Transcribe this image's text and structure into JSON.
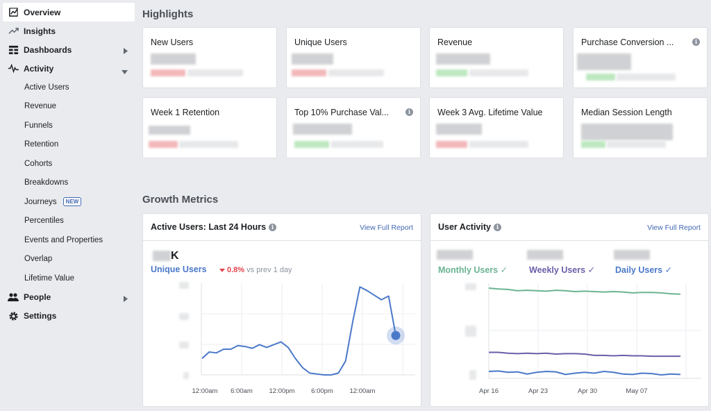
{
  "sidebar": {
    "items": [
      {
        "label": "Overview",
        "icon": "chart-line-box-icon",
        "active": true
      },
      {
        "label": "Insights",
        "icon": "trend-up-icon"
      },
      {
        "label": "Dashboards",
        "icon": "grid-icon",
        "has_arrow": true
      },
      {
        "label": "Activity",
        "icon": "pulse-icon",
        "expanded": true
      }
    ],
    "activity_sub": [
      {
        "label": "Active Users"
      },
      {
        "label": "Revenue"
      },
      {
        "label": "Funnels"
      },
      {
        "label": "Retention"
      },
      {
        "label": "Cohorts"
      },
      {
        "label": "Breakdowns"
      },
      {
        "label": "Journeys",
        "badge": "NEW"
      },
      {
        "label": "Percentiles"
      },
      {
        "label": "Events and Properties"
      },
      {
        "label": "Overlap"
      },
      {
        "label": "Lifetime Value"
      }
    ],
    "bottom_items": [
      {
        "label": "People",
        "icon": "people-icon",
        "has_arrow": true
      },
      {
        "label": "Settings",
        "icon": "gear-icon"
      }
    ]
  },
  "highlights": {
    "title": "Highlights",
    "cards": [
      {
        "label": "New Users",
        "trend": "red"
      },
      {
        "label": "Unique Users",
        "trend": "red"
      },
      {
        "label": "Revenue",
        "trend": "green"
      },
      {
        "label": "Purchase Conversion ...",
        "trend": "green",
        "info": true
      },
      {
        "label": "Week 1 Retention",
        "trend": "red"
      },
      {
        "label": "Top 10% Purchase Val...",
        "trend": "green",
        "info": true
      },
      {
        "label": "Week 3 Avg. Lifetime Value",
        "trend": "red"
      },
      {
        "label": "Median Session Length",
        "trend": "green"
      }
    ]
  },
  "growth": {
    "title": "Growth Metrics",
    "active_users": {
      "title": "Active Users: Last 24 Hours",
      "link": "View Full Report",
      "big_value_suffix": "K",
      "series_label": "Unique Users",
      "delta_pct": "0.8%",
      "delta_text": "vs prev 1 day"
    },
    "user_activity": {
      "title": "User Activity",
      "link": "View Full Report",
      "series": [
        {
          "label": "Monthly Users",
          "color": "#6bb392"
        },
        {
          "label": "Weekly Users",
          "color": "#6b5ea8"
        },
        {
          "label": "Daily Users",
          "color": "#4a78c9"
        }
      ]
    }
  },
  "chart_data": [
    {
      "type": "line",
      "title": "Active Users: Last 24 Hours",
      "x_tick_labels": [
        "12:00am",
        "6:00am",
        "12:00pm",
        "6:00pm",
        "12:00am"
      ],
      "series": [
        {
          "name": "Unique Users",
          "color": "#4a78c9",
          "values": [
            0.18,
            0.25,
            0.24,
            0.28,
            0.28,
            0.32,
            0.31,
            0.29,
            0.33,
            0.3,
            0.33,
            0.36,
            0.3,
            0.18,
            0.08,
            0.02,
            0.01,
            0.0,
            0.0,
            0.02,
            0.15,
            0.58,
            0.96,
            0.92,
            0.87,
            0.82,
            0.86,
            0.43
          ]
        }
      ],
      "ylim": [
        0,
        1
      ]
    },
    {
      "type": "line",
      "title": "User Activity",
      "x_tick_labels": [
        "Apr 16",
        "Apr 23",
        "Apr 30",
        "May 07"
      ],
      "series": [
        {
          "name": "Monthly Users",
          "color": "#6bb392",
          "values": [
            1.0,
            0.99,
            0.985,
            0.97,
            0.975,
            0.97,
            0.965,
            0.975,
            0.97,
            0.96,
            0.965,
            0.96,
            0.955,
            0.96,
            0.955,
            0.945,
            0.95,
            0.95,
            0.945,
            0.935,
            0.93
          ]
        },
        {
          "name": "Weekly Users",
          "color": "#6b5ea8",
          "values": [
            0.26,
            0.26,
            0.25,
            0.245,
            0.25,
            0.245,
            0.25,
            0.24,
            0.245,
            0.245,
            0.24,
            0.225,
            0.225,
            0.22,
            0.225,
            0.22,
            0.22,
            0.215,
            0.215,
            0.215,
            0.215
          ]
        },
        {
          "name": "Daily Users",
          "color": "#4a78c9",
          "values": [
            0.04,
            0.045,
            0.03,
            0.035,
            0.01,
            0.03,
            0.04,
            0.035,
            0.005,
            0.02,
            0.03,
            0.02,
            0.04,
            0.03,
            0.01,
            0.005,
            0.02,
            0.015,
            0.0,
            0.01,
            0.005
          ]
        }
      ],
      "ylim": [
        0,
        1
      ]
    }
  ]
}
